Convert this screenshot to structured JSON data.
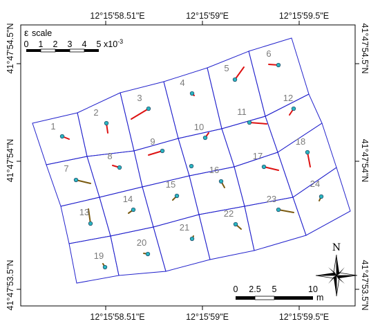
{
  "map": {
    "top_labels": [
      "12°15'58.51\"E",
      "12°15'59\"E",
      "12°15'59.5\"E"
    ],
    "bottom_labels": [
      "12°15'58.51\"E",
      "12°15'59\"E",
      "12°15'59.5\"E"
    ],
    "left_labels": [
      "41°47'54.5\"N",
      "41°47'54\"N",
      "41°47'53.5\"N"
    ],
    "right_labels": [
      "41°47'54.5\"N",
      "41°47'54\"N",
      "41°47'53.5\"N"
    ],
    "colors": {
      "cell_border": "#2222cc",
      "strain_arrow": "#dd1111",
      "strain_arrow_dark": "#7a5a10",
      "station_dot": "#2bb5c0",
      "cell_number": "#7a7a7a"
    }
  },
  "strain_scale": {
    "symbol": "ε",
    "label": "scale",
    "ticks": [
      "0",
      "1",
      "2",
      "3",
      "4",
      "5"
    ],
    "multiplier": "x10",
    "exponent": "-3"
  },
  "distance_scale": {
    "ticks": [
      "0",
      "2.5",
      "5",
      "10"
    ],
    "unit": "m"
  },
  "compass": {
    "north_label": "N"
  },
  "cells": [
    {
      "id": "1"
    },
    {
      "id": "2"
    },
    {
      "id": "3"
    },
    {
      "id": "4"
    },
    {
      "id": "5"
    },
    {
      "id": "6"
    },
    {
      "id": "7"
    },
    {
      "id": "8"
    },
    {
      "id": "9"
    },
    {
      "id": "10"
    },
    {
      "id": "11"
    },
    {
      "id": "12"
    },
    {
      "id": "13"
    },
    {
      "id": "14"
    },
    {
      "id": "15"
    },
    {
      "id": "16"
    },
    {
      "id": "17"
    },
    {
      "id": "18"
    },
    {
      "id": "19"
    },
    {
      "id": "20"
    },
    {
      "id": "21"
    },
    {
      "id": "22"
    },
    {
      "id": "23"
    },
    {
      "id": "24"
    }
  ]
}
